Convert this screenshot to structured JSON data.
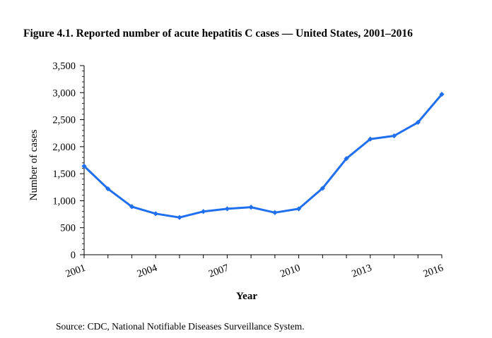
{
  "figure": {
    "title": "Figure 4.1. Reported number of acute hepatitis C cases — United States, 2001–2016",
    "source": "Source: CDC, National Notifiable Diseases Surveillance System."
  },
  "chart_data": {
    "type": "line",
    "title": "Figure 4.1. Reported number of acute hepatitis C cases — United States, 2001–2016",
    "xlabel": "Year",
    "ylabel": "Number of cases",
    "x": [
      2001,
      2002,
      2003,
      2004,
      2005,
      2006,
      2007,
      2008,
      2009,
      2010,
      2011,
      2012,
      2013,
      2014,
      2015,
      2016
    ],
    "series": [
      {
        "values": [
          1640,
          1220,
          890,
          760,
          690,
          800,
          850,
          880,
          780,
          850,
          1230,
          1780,
          2140,
          2200,
          2450,
          2970
        ],
        "color": "#1f6fef"
      }
    ],
    "xlim": [
      2001,
      2016
    ],
    "ylim": [
      0,
      3500
    ],
    "x_tick_values": [
      2001,
      2004,
      2007,
      2010,
      2013,
      2016
    ],
    "x_tick_labels": [
      "2001",
      "2004",
      "2007",
      "2010",
      "2013",
      "2016"
    ],
    "y_tick_values": [
      0,
      500,
      1000,
      1500,
      2000,
      2500,
      3000,
      3500
    ],
    "y_tick_labels": [
      "0",
      "500",
      "1,000",
      "1,500",
      "2,000",
      "2,500",
      "3,000",
      "3,500"
    ],
    "y_minor_step": 100,
    "grid": false,
    "legend": "none",
    "axis_color": "#000000"
  }
}
